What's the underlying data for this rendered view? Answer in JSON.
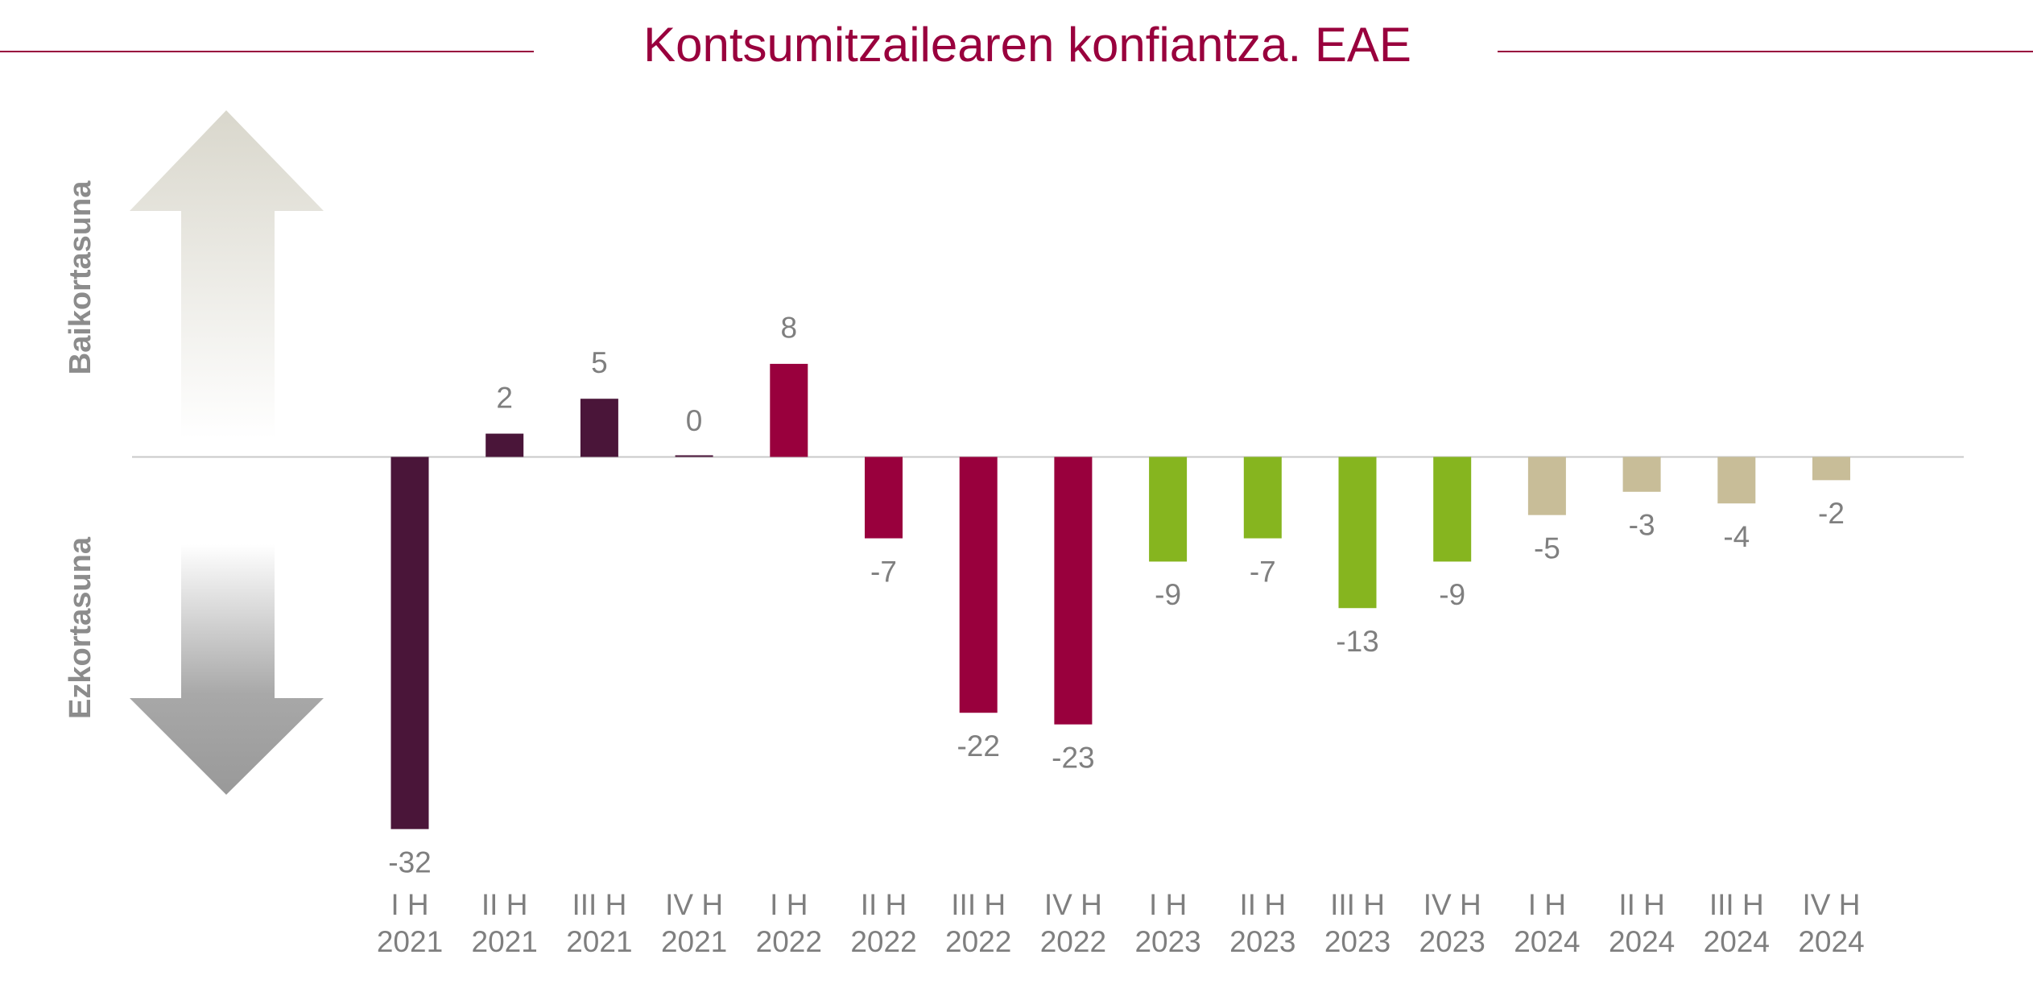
{
  "chart_data": {
    "type": "bar",
    "title": "Kontsumitzailearen konfiantza. EAE",
    "side_labels": [
      "Baikortasuna",
      "Ezkortasuna"
    ],
    "categories": [
      [
        "I H",
        "2021"
      ],
      [
        "II H",
        "2021"
      ],
      [
        "III H",
        "2021"
      ],
      [
        "IV H",
        "2021"
      ],
      [
        "I H",
        "2022"
      ],
      [
        "II H",
        "2022"
      ],
      [
        "III H",
        "2022"
      ],
      [
        "IV H",
        "2022"
      ],
      [
        "I H",
        "2023"
      ],
      [
        "II H",
        "2023"
      ],
      [
        "III H",
        "2023"
      ],
      [
        "IV H",
        "2023"
      ],
      [
        "I H",
        "2024"
      ],
      [
        "II H",
        "2024"
      ],
      [
        "III H",
        "2024"
      ],
      [
        "IV H",
        "2024"
      ]
    ],
    "values": [
      -32,
      2,
      5,
      0,
      8,
      -7,
      -22,
      -23,
      -9,
      -7,
      -13,
      -9,
      -5,
      -3,
      -4,
      -2
    ],
    "colors": [
      "#4a1539",
      "#4a1539",
      "#4a1539",
      "#4a1539",
      "#99003d",
      "#99003d",
      "#99003d",
      "#99003d",
      "#86b51f",
      "#86b51f",
      "#86b51f",
      "#86b51f",
      "#c8bd98",
      "#c8bd98",
      "#c8bd98",
      "#c8bd98"
    ],
    "ylim": [
      -35,
      10
    ]
  }
}
